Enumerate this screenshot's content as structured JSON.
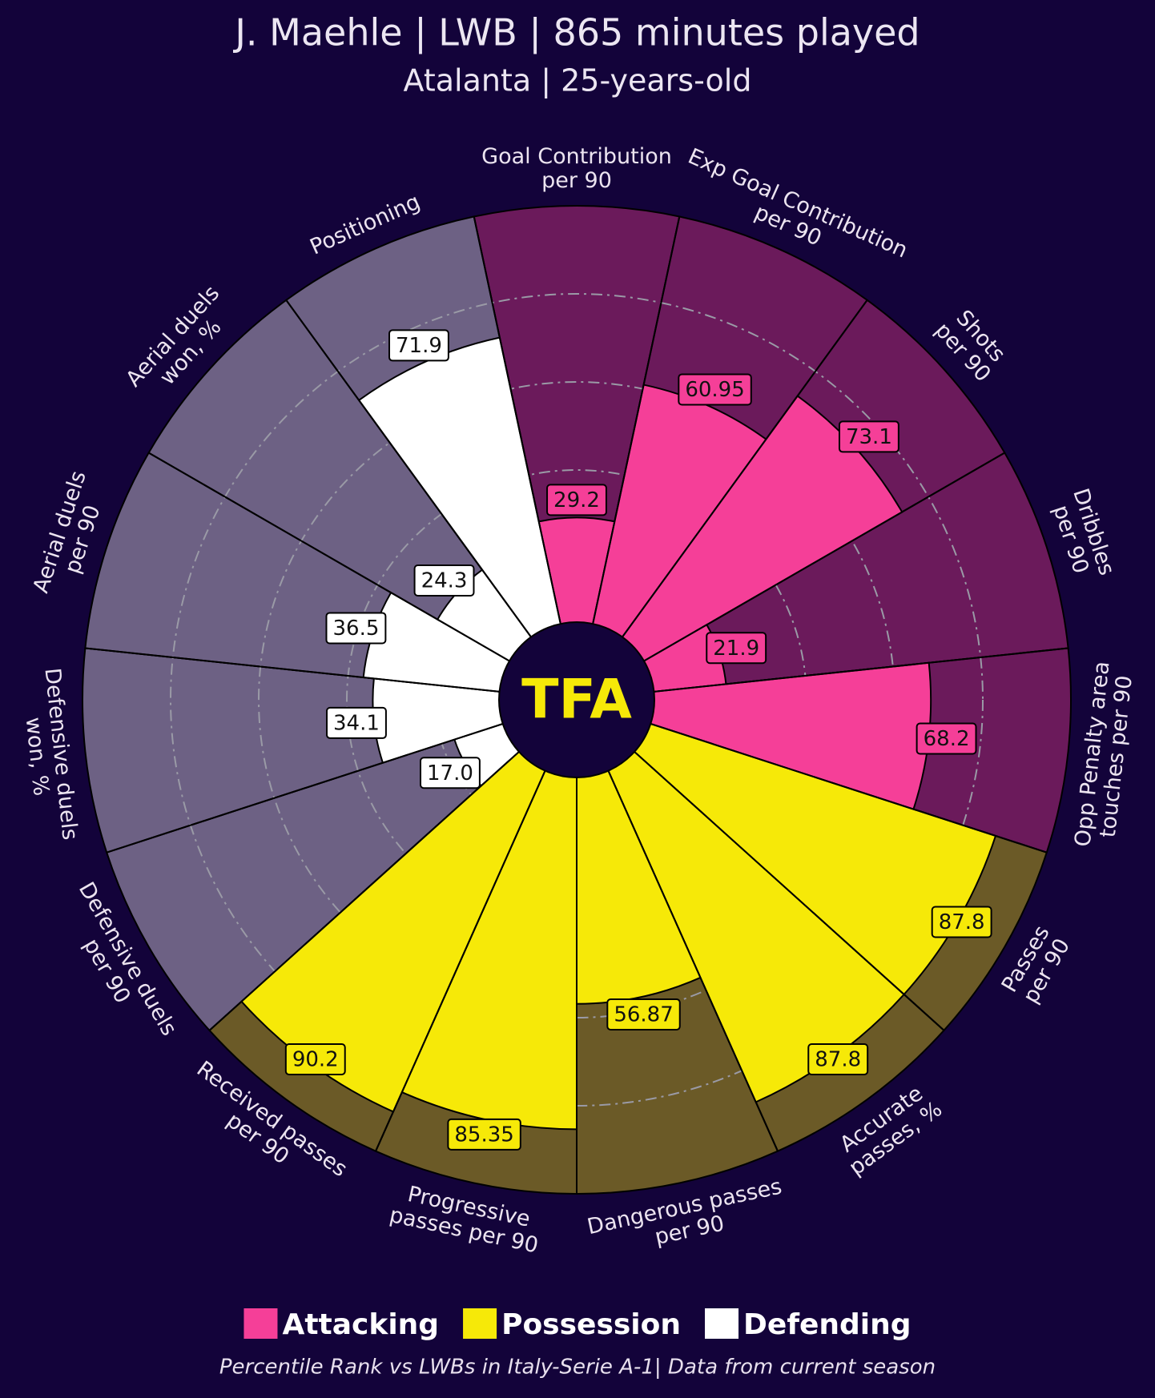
{
  "chart_data": {
    "type": "pizza",
    "title": "J. Maehle | LWB | 865 minutes played",
    "subtitle": "Atalanta | 25-years-old",
    "footer": "Percentile Rank vs LWBs in Italy-Serie A-1| Data from current season",
    "logo": "TFA",
    "categories": [
      "Goal Contribution\nper 90",
      "Exp Goal Contribution\nper 90",
      "Shots\nper 90",
      "Dribbles\nper 90",
      "Opp Penalty area\ntouches per 90",
      "Passes\nper 90",
      "Accurate\npasses, %",
      "Dangerous passes\nper 90",
      "Progressive\npasses per 90",
      "Received passes\nper 90",
      "Defensive duels\nper 90",
      "Defensive duels\nwon, %",
      "Aerial duels\nper 90",
      "Aerial duels\nwon, %",
      "Positioning"
    ],
    "series": [
      {
        "name": "Attacking",
        "color": "#f53f98",
        "background_color": "#6b1a5b",
        "values": [
          29.2,
          60.95,
          73.1,
          21.9,
          68.2,
          null,
          null,
          null,
          null,
          null,
          null,
          null,
          null,
          null,
          null
        ]
      },
      {
        "name": "Possession",
        "color": "#f6e908",
        "background_color": "#6b5a27",
        "values": [
          null,
          null,
          null,
          null,
          null,
          87.8,
          87.8,
          56.87,
          85.35,
          90.2,
          null,
          null,
          null,
          null,
          null
        ]
      },
      {
        "name": "Defending",
        "color": "#ffffff",
        "background_color": "#6d6184",
        "values": [
          null,
          null,
          null,
          null,
          null,
          null,
          null,
          null,
          null,
          null,
          17.0,
          34.1,
          36.5,
          24.3,
          71.9
        ],
        "value_labels": [
          null,
          null,
          null,
          null,
          null,
          null,
          null,
          null,
          null,
          null,
          "17.0",
          null,
          null,
          null,
          null
        ]
      }
    ],
    "ylim": [
      0,
      100
    ],
    "yticks": [
      20,
      40,
      60,
      80
    ],
    "grid": true
  }
}
